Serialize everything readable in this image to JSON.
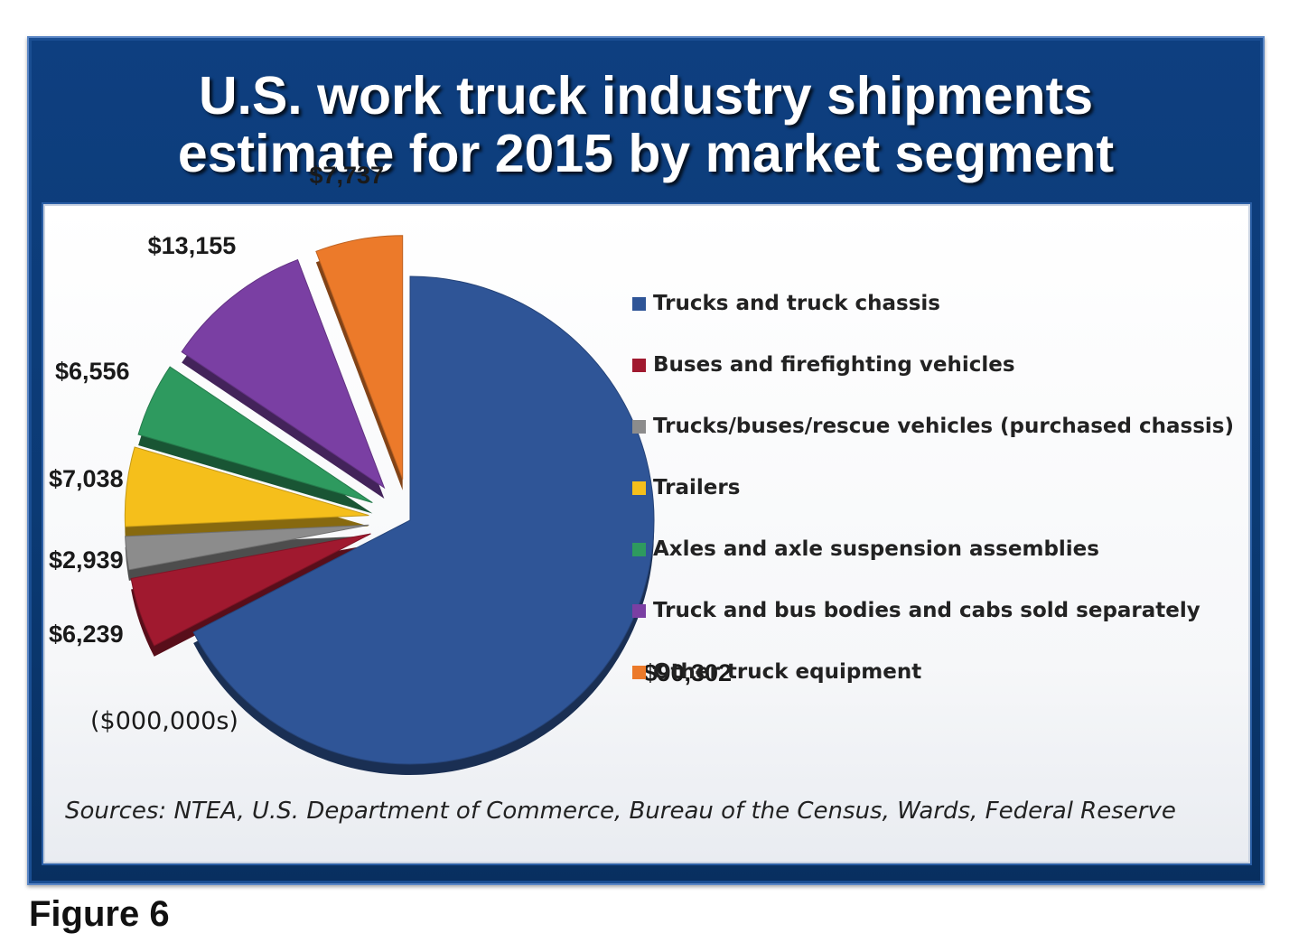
{
  "title": {
    "line1": "U.S. work truck industry shipments",
    "line2": "estimate for 2015 by market segment"
  },
  "unit_note": "($000,000s)",
  "sources": "Sources: NTEA, U.S. Department of Commerce, Bureau of the Census, Wards, Federal Reserve",
  "figure_label": "Figure 6",
  "chart_data": {
    "type": "pie",
    "exploded": true,
    "three_d": true,
    "legend_placement": "right",
    "slices": [
      {
        "label": "Trucks and truck chassis",
        "value": 90302,
        "value_label": "$90,302",
        "color": "#2f5597"
      },
      {
        "label": "Buses and firefighting vehicles",
        "value": 6239,
        "value_label": "$6,239",
        "color": "#a0192f"
      },
      {
        "label": "Trucks/buses/rescue vehicles (purchased chassis)",
        "value": 2939,
        "value_label": "$2,939",
        "color": "#8c8c8c"
      },
      {
        "label": "Trailers",
        "value": 7038,
        "value_label": "$7,038",
        "color": "#f5bf1b"
      },
      {
        "label": "Axles and axle suspension assemblies",
        "value": 6556,
        "value_label": "$6,556",
        "color": "#2e9a5f"
      },
      {
        "label": "Truck and bus bodies and cabs sold separately",
        "value": 13155,
        "value_label": "$13,155",
        "color": "#7a3fa3"
      },
      {
        "label": "Other truck equipment",
        "value": 7737,
        "value_label": "$7,737",
        "color": "#ec7a2a"
      }
    ]
  }
}
